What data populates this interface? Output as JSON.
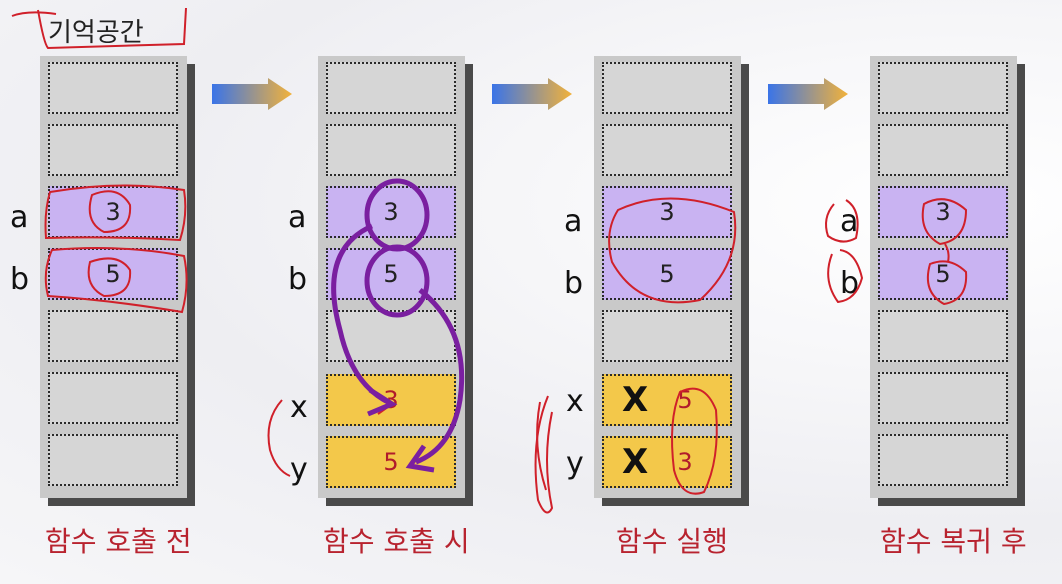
{
  "title": "기억공간",
  "panels": [
    {
      "caption": "함수 호출 전",
      "labels": [
        "a",
        "b"
      ],
      "cells": [
        "",
        "",
        "3",
        "5",
        "",
        "",
        ""
      ]
    },
    {
      "caption": "함수 호출 시",
      "labels": [
        "a",
        "b",
        "x",
        "y"
      ],
      "cells": [
        "",
        "",
        "3",
        "5",
        "",
        "3",
        "5"
      ]
    },
    {
      "caption": "함수 실행",
      "labels": [
        "a",
        "b",
        "x",
        "y"
      ],
      "cells": [
        "",
        "",
        "3",
        "5",
        "",
        "5",
        "3"
      ]
    },
    {
      "caption": "함수 복귀 후",
      "labels": [
        "a",
        "b"
      ],
      "cells": [
        "",
        "",
        "3",
        "5",
        "",
        "",
        ""
      ]
    }
  ],
  "crossed_mark": "X",
  "colors": {
    "cell": "#d6d6d6",
    "variable_cell": "#c9b3f2",
    "parameter_cell": "#f3c84a",
    "caption": "#b8232f",
    "annotation": "#d0202a",
    "call_arrow": "#7a1fa0"
  }
}
